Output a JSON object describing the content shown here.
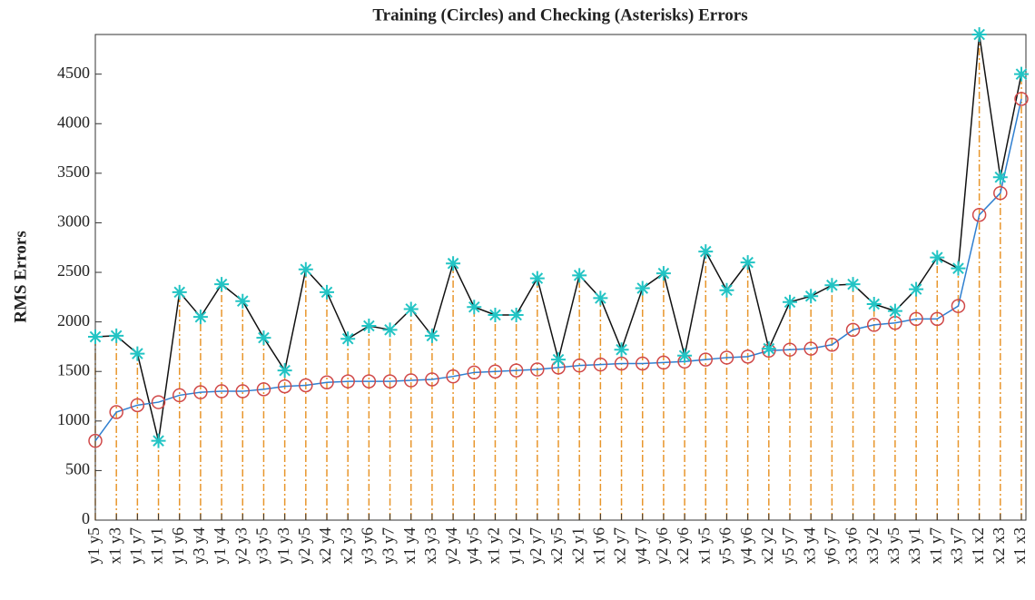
{
  "chart_data": {
    "type": "line",
    "title": "Training (Circles) and Checking (Asterisks) Errors",
    "y_label": "RMS Errors",
    "categories": [
      "y1 y5",
      "x1 y3",
      "y1 y7",
      "x1 y1",
      "y1 y6",
      "y3 y4",
      "y1 y4",
      "y2 y3",
      "y3 y5",
      "y1 y3",
      "y2 y5",
      "x2 y4",
      "x2 y3",
      "y3 y6",
      "y3 y7",
      "x1 y4",
      "x3 y3",
      "y2 y4",
      "y4 y5",
      "x1 y2",
      "y1 y2",
      "y2 y7",
      "x2 y5",
      "x2 y1",
      "x1 y6",
      "x2 y7",
      "y4 y7",
      "y2 y6",
      "x2 y6",
      "x1 y5",
      "y5 y6",
      "y4 y6",
      "x2 y2",
      "y5 y7",
      "x3 y4",
      "y6 y7",
      "x3 y6",
      "x3 y2",
      "x3 y5",
      "x3 y1",
      "x1 y7",
      "x3 y7",
      "x1 x2",
      "x2 x3",
      "x1 x3"
    ],
    "series": [
      {
        "color": "#2f7fd0",
        "marker": "circle",
        "marker_color": "#d04848",
        "values": [
          800,
          1090,
          1160,
          1190,
          1260,
          1290,
          1300,
          1300,
          1320,
          1350,
          1360,
          1390,
          1400,
          1400,
          1400,
          1410,
          1420,
          1450,
          1490,
          1500,
          1510,
          1520,
          1540,
          1560,
          1570,
          1580,
          1580,
          1590,
          1600,
          1620,
          1640,
          1650,
          1710,
          1720,
          1730,
          1770,
          1920,
          1970,
          1990,
          2030,
          2030,
          2160,
          3080,
          3300,
          4250
        ]
      },
      {
        "color": "#111111",
        "marker": "asterisk",
        "marker_color": "#22c4c4",
        "stem_color": "#e8962c",
        "values": [
          1850,
          1860,
          1680,
          800,
          2300,
          2050,
          2380,
          2210,
          1840,
          1510,
          2530,
          2300,
          1830,
          1960,
          1920,
          2130,
          1860,
          2590,
          2150,
          2070,
          2070,
          2440,
          1620,
          2470,
          2240,
          1720,
          2340,
          2490,
          1660,
          2710,
          2320,
          2600,
          1730,
          2200,
          2260,
          2370,
          2380,
          2180,
          2110,
          2330,
          2650,
          2540,
          4900,
          3460,
          4500
        ]
      }
    ],
    "ylim": [
      0,
      4900
    ],
    "yticks": [
      0,
      500,
      1000,
      1500,
      2000,
      2500,
      3000,
      3500,
      4000,
      4500
    ]
  }
}
